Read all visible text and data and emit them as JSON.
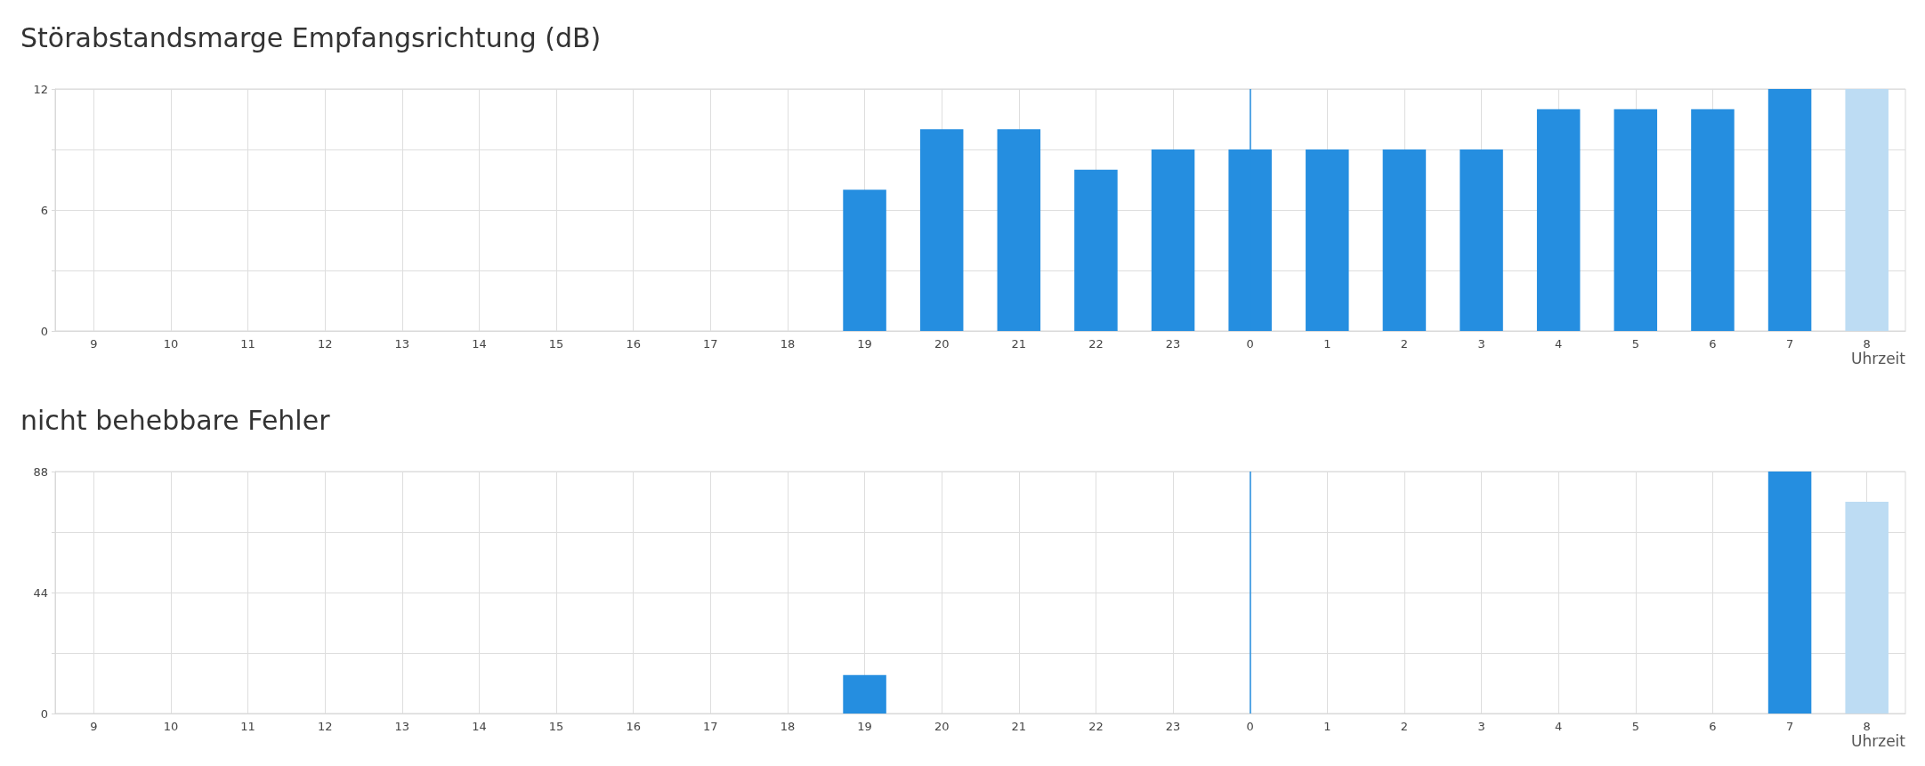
{
  "chart_data": [
    {
      "type": "bar",
      "title": "Störabstandsmarge Empfangsrichtung (dB)",
      "xlabel": "Uhrzeit",
      "categories": [
        "9",
        "10",
        "11",
        "12",
        "13",
        "14",
        "15",
        "16",
        "17",
        "18",
        "19",
        "20",
        "21",
        "22",
        "23",
        "0",
        "1",
        "2",
        "3",
        "4",
        "5",
        "6",
        "7",
        "8"
      ],
      "values": [
        null,
        null,
        null,
        null,
        null,
        null,
        null,
        null,
        null,
        null,
        7,
        10,
        10,
        8,
        9,
        9,
        9,
        9,
        9,
        11,
        11,
        11,
        12,
        12
      ],
      "colors": [
        "#258ee0",
        "#258ee0",
        "#258ee0",
        "#258ee0",
        "#258ee0",
        "#258ee0",
        "#258ee0",
        "#258ee0",
        "#258ee0",
        "#258ee0",
        "#258ee0",
        "#258ee0",
        "#258ee0",
        "#258ee0",
        "#258ee0",
        "#258ee0",
        "#258ee0",
        "#258ee0",
        "#258ee0",
        "#258ee0",
        "#258ee0",
        "#258ee0",
        "#258ee0",
        "#bddcf3"
      ],
      "ylim": [
        0,
        12
      ],
      "yticks": [
        0,
        {
          "value": 3,
          "label": null
        },
        6,
        {
          "value": 9,
          "label": null
        },
        12
      ],
      "grid": true,
      "ref_lines": [
        {
          "axis": "x",
          "value": "0",
          "color": "#258ee0",
          "line_style": "solid"
        }
      ]
    },
    {
      "type": "bar",
      "title": "nicht behebbare Fehler",
      "xlabel": "Uhrzeit",
      "categories": [
        "9",
        "10",
        "11",
        "12",
        "13",
        "14",
        "15",
        "16",
        "17",
        "18",
        "19",
        "20",
        "21",
        "22",
        "23",
        "0",
        "1",
        "2",
        "3",
        "4",
        "5",
        "6",
        "7",
        "8"
      ],
      "values": [
        null,
        null,
        null,
        null,
        null,
        null,
        null,
        null,
        null,
        null,
        14,
        null,
        null,
        null,
        null,
        null,
        null,
        null,
        null,
        null,
        null,
        null,
        88,
        77
      ],
      "colors": [
        "#258ee0",
        "#258ee0",
        "#258ee0",
        "#258ee0",
        "#258ee0",
        "#258ee0",
        "#258ee0",
        "#258ee0",
        "#258ee0",
        "#258ee0",
        "#258ee0",
        "#258ee0",
        "#258ee0",
        "#258ee0",
        "#258ee0",
        "#258ee0",
        "#258ee0",
        "#258ee0",
        "#258ee0",
        "#258ee0",
        "#258ee0",
        "#258ee0",
        "#258ee0",
        "#bddcf3"
      ],
      "ylim": [
        0,
        88
      ],
      "yticks": [
        0,
        {
          "value": 22,
          "label": null
        },
        44,
        {
          "value": 66,
          "label": null
        },
        88
      ],
      "grid": true,
      "ref_lines": [
        {
          "axis": "x",
          "value": "0",
          "color": "#258ee0",
          "line_style": "solid"
        }
      ]
    }
  ]
}
